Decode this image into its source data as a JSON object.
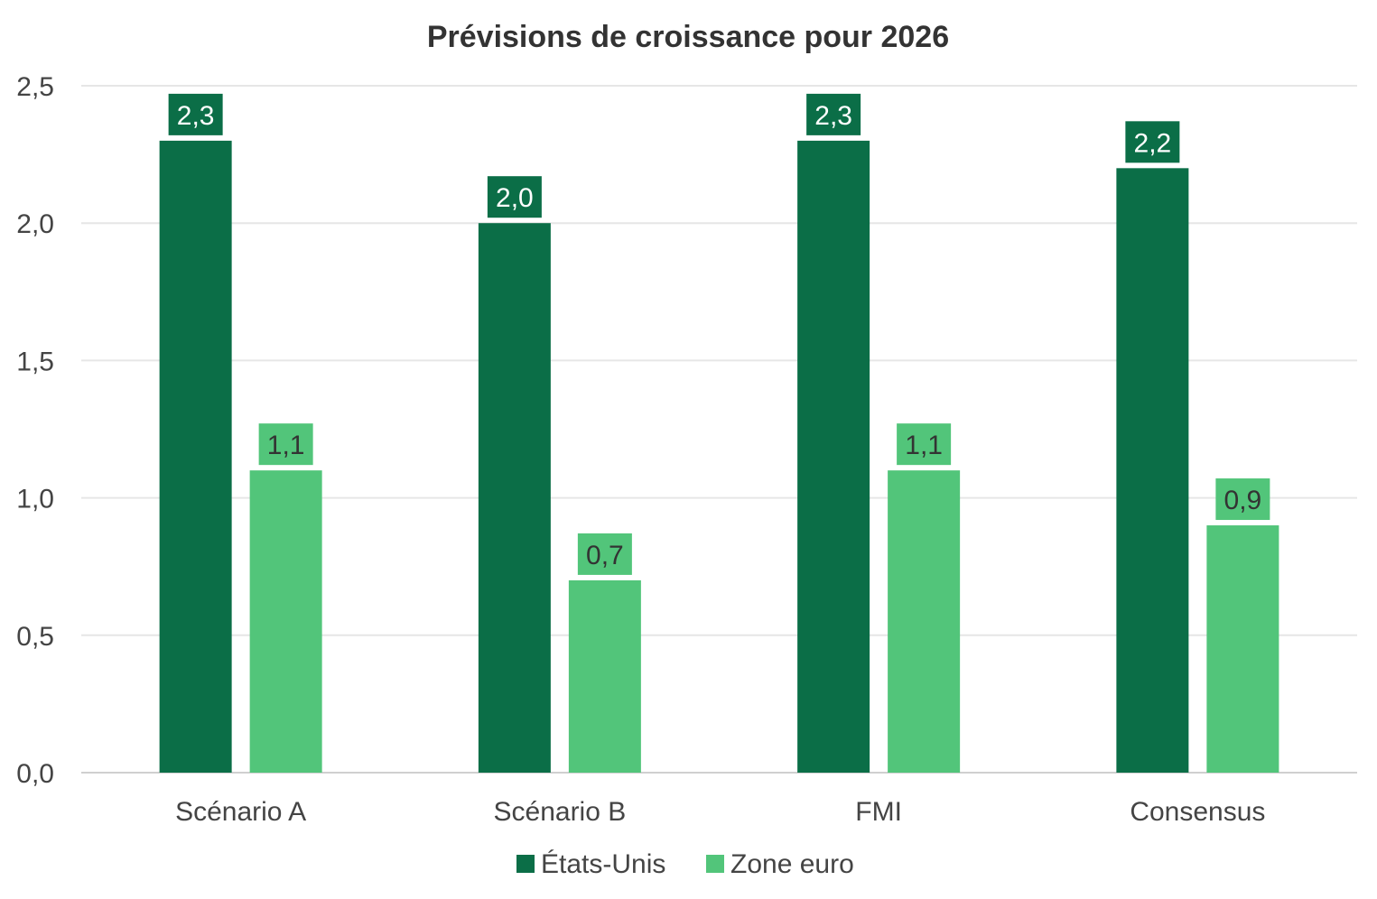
{
  "chart_data": {
    "type": "bar",
    "title": "Prévisions de croissance pour 2026",
    "xlabel": "",
    "ylabel": "",
    "categories": [
      "Scénario A",
      "Scénario B",
      "FMI",
      "Consensus"
    ],
    "series": [
      {
        "name": "États-Unis",
        "values": [
          2.3,
          2.0,
          2.3,
          2.2
        ],
        "labels": [
          "2,3",
          "2,0",
          "2,3",
          "2,2"
        ],
        "color": "#0b6e47",
        "label_text_color": "#ffffff"
      },
      {
        "name": "Zone euro",
        "values": [
          1.1,
          0.7,
          1.1,
          0.9
        ],
        "labels": [
          "1,1",
          "0,7",
          "1,1",
          "0,9"
        ],
        "color": "#52c57a",
        "label_text_color": "#333333"
      }
    ],
    "ylim": [
      0,
      2.5
    ],
    "yticks": [
      0,
      0.5,
      1.0,
      1.5,
      2.0,
      2.5
    ],
    "ytick_labels": [
      "0,0",
      "0,5",
      "1,0",
      "1,5",
      "2,0",
      "2,5"
    ],
    "grid": true,
    "legend_position": "bottom-center",
    "colors": {
      "grid": "#e6e6e6",
      "axis": "#d0d0d0"
    }
  }
}
